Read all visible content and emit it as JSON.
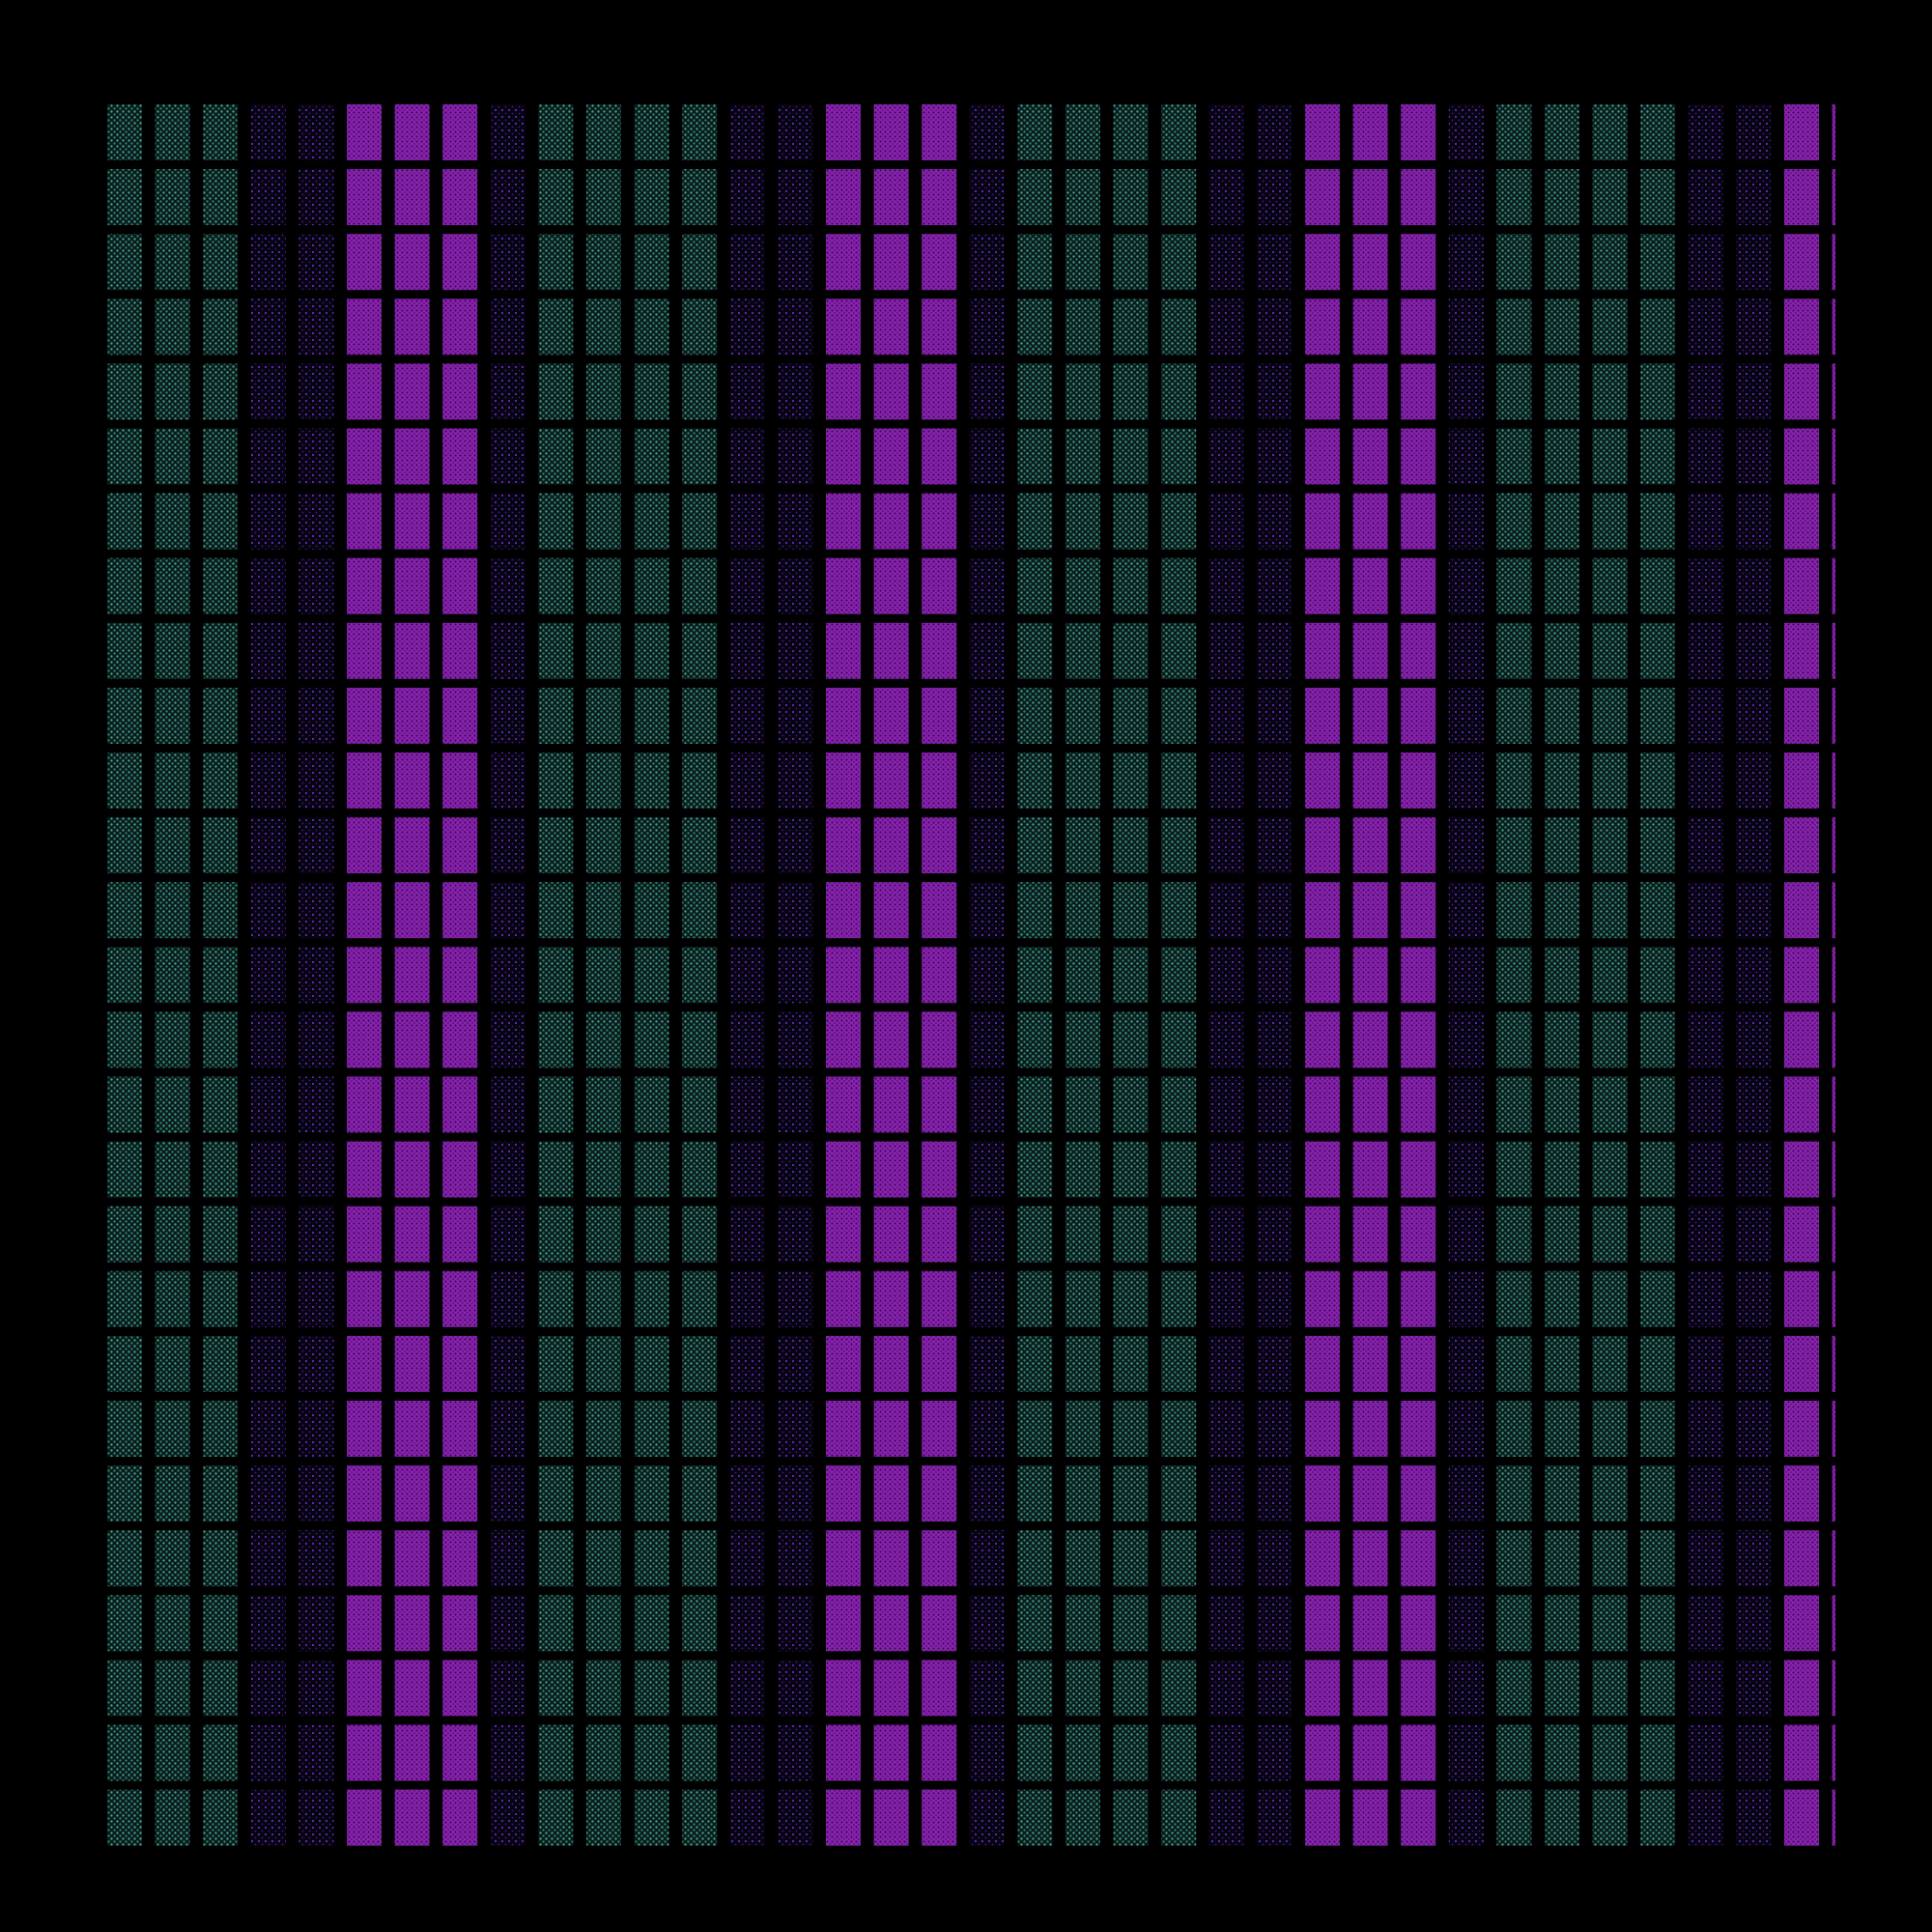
{
  "background_color": "#000000",
  "palette": {
    "teal": "#2e8a7e",
    "violet": "#5a2aa8",
    "magenta": "#7a1ea0",
    "dot_dark": "#1a0830"
  },
  "pattern": {
    "column_count": 37,
    "row_count": 27,
    "column_cycle": [
      "teal",
      "teal",
      "teal",
      "violet",
      "violet",
      "magenta",
      "magenta",
      "magenta",
      "violet",
      "teal"
    ],
    "cell_texture": "dotted"
  }
}
